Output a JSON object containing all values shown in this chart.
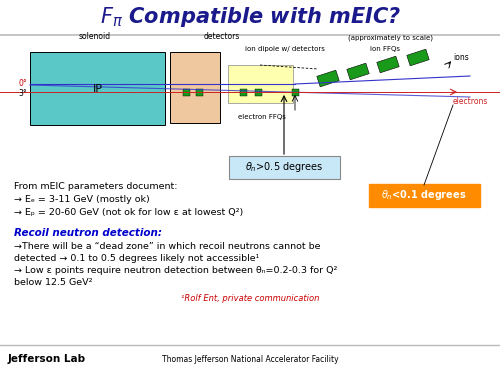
{
  "title_part1": "$F_{\\pi}$",
  "title_part2": " Compatible with mEIC?",
  "title_color": "#1a1a8c",
  "bg_color": "#ffffff",
  "header_line_color": "#bbbbbb",
  "footer_line_color": "#bbbbbb",
  "footer_left": "Jefferson Lab",
  "footer_center": "Thomas Jefferson National Accelerator Facility",
  "text_lines": [
    "From mEIC parameters document:",
    "→ Eₑ = 3-11 GeV (mostly ok)",
    "→ Eₚ = 20-60 GeV (not ok for low ε at lowest Q²)"
  ],
  "neutron_title": "Recoil neutron detection:",
  "neutron_lines": [
    "→There will be a “dead zone” in which recoil neutrons cannot be",
    "detected → 0.1 to 0.5 degrees likely not accessible¹",
    "→ Low ε points require neutron detection between θₙ=0.2-0.3 for Q²",
    "below 12.5 GeV²"
  ],
  "footnote": "¹Rolf Ent, private communication",
  "label_solenoid": "solenoid",
  "label_detectors": "detectors",
  "label_approx": "(approximately to scale)",
  "label_ion_dipole": "ion dipole w/ detectors",
  "label_ion_ffqs": "ion FFQs",
  "label_electron_ffqs": "electron FFQs",
  "label_ip": "IP",
  "label_ions": "ions",
  "label_electrons": "electrons",
  "label_0deg": "0°",
  "label_3deg": "3°",
  "solenoid_color": "#5bc8c8",
  "detector_color": "#f0c8a0",
  "yellow_box_color": "#ffffb0",
  "green_color": "#1a9a1a",
  "orange_color": "#ff8c00",
  "blue_line_color": "#3333cc",
  "red_line_color": "#cc2222",
  "theta_gt_box_color": "#c8e8f8",
  "theta_lt_box_color": "#ff8c00"
}
